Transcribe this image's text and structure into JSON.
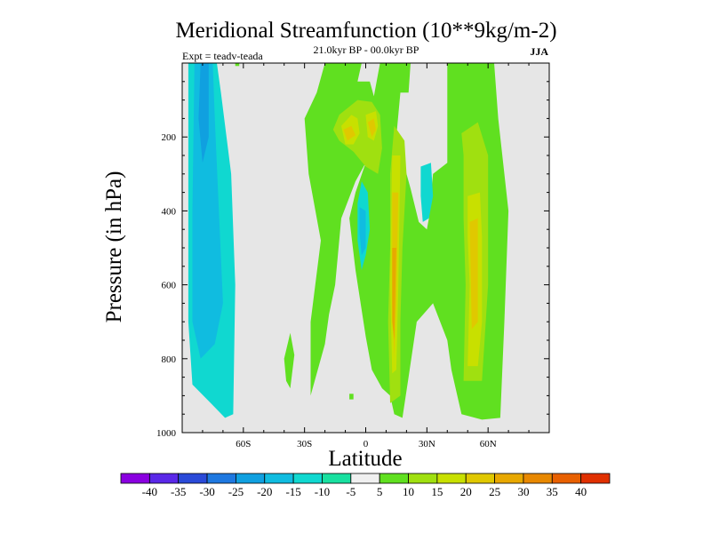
{
  "chart_data": {
    "type": "heatmap",
    "title": "Meridional Streamfunction (10**9kg/m-2)",
    "subtitle": "21.0kyr BP - 00.0kyr BP",
    "experiment_label": "Expt = teadv-teada",
    "season": "JJA",
    "xlabel": "Latitude",
    "ylabel": "Pressure (in hPa)",
    "xlim": [
      -90,
      90
    ],
    "ylim": [
      1000,
      0
    ],
    "x_ticks": [
      {
        "value": -60,
        "label": "60S"
      },
      {
        "value": -30,
        "label": "30S"
      },
      {
        "value": 0,
        "label": "0"
      },
      {
        "value": 30,
        "label": "30N"
      },
      {
        "value": 60,
        "label": "60N"
      }
    ],
    "y_ticks": [
      {
        "value": 200,
        "label": "200"
      },
      {
        "value": 400,
        "label": "400"
      },
      {
        "value": 600,
        "label": "600"
      },
      {
        "value": 800,
        "label": "800"
      },
      {
        "value": 1000,
        "label": "1000"
      }
    ],
    "colorbar": {
      "labels": [
        "-40",
        "-35",
        "-30",
        "-25",
        "-20",
        "-15",
        "-10",
        "-5",
        "5",
        "10",
        "15",
        "20",
        "25",
        "30",
        "35",
        "40"
      ],
      "colors": [
        "#8a00e0",
        "#5a28e8",
        "#2a4ad8",
        "#1e78e0",
        "#10a0e0",
        "#10bce0",
        "#10d8d0",
        "#18e0a0",
        "#f0f0f0",
        "#60e020",
        "#a0e010",
        "#c8e000",
        "#e0c800",
        "#e8a800",
        "#e88800",
        "#e86000",
        "#e03000"
      ]
    },
    "regions": [
      {
        "value": -10,
        "points": [
          [
            -87,
            0
          ],
          [
            -73,
            0
          ],
          [
            -71,
            80
          ],
          [
            -66,
            300
          ],
          [
            -64,
            600
          ],
          [
            -65,
            950
          ],
          [
            -69,
            960
          ],
          [
            -76,
            920
          ],
          [
            -85,
            870
          ],
          [
            -87,
            700
          ]
        ]
      },
      {
        "value": -15,
        "points": [
          [
            -84,
            0
          ],
          [
            -75,
            0
          ],
          [
            -74,
            150
          ],
          [
            -72,
            400
          ],
          [
            -70,
            650
          ],
          [
            -74,
            760
          ],
          [
            -81,
            800
          ],
          [
            -85,
            700
          ],
          [
            -85,
            400
          ]
        ]
      },
      {
        "value": -20,
        "points": [
          [
            -81,
            0
          ],
          [
            -77,
            0
          ],
          [
            -77,
            200
          ],
          [
            -80,
            270
          ],
          [
            -82,
            150
          ]
        ]
      },
      {
        "value": 5,
        "points": [
          [
            -20,
            0
          ],
          [
            -2,
            0
          ],
          [
            -4,
            50
          ],
          [
            2,
            50
          ],
          [
            4,
            90
          ],
          [
            7,
            0
          ],
          [
            22,
            0
          ],
          [
            21,
            80
          ],
          [
            17,
            80
          ],
          [
            15,
            200
          ],
          [
            22,
            340
          ],
          [
            26,
            430
          ],
          [
            30,
            450
          ],
          [
            31,
            420
          ],
          [
            33,
            300
          ],
          [
            40,
            270
          ],
          [
            40,
            0
          ],
          [
            63,
            0
          ],
          [
            65,
            150
          ],
          [
            70,
            400
          ],
          [
            68,
            700
          ],
          [
            66,
            960
          ],
          [
            57,
            965
          ],
          [
            47,
            950
          ],
          [
            42,
            830
          ],
          [
            40,
            750
          ],
          [
            33,
            650
          ],
          [
            25,
            700
          ],
          [
            21,
            850
          ],
          [
            18,
            960
          ],
          [
            14,
            950
          ],
          [
            12,
            900
          ],
          [
            8,
            880
          ],
          [
            3,
            830
          ],
          [
            0,
            740
          ],
          [
            -5,
            560
          ],
          [
            -8,
            420
          ],
          [
            -5,
            350
          ],
          [
            0,
            270
          ],
          [
            -5,
            320
          ],
          [
            -12,
            420
          ],
          [
            -15,
            600
          ],
          [
            -18,
            680
          ],
          [
            -20,
            760
          ],
          [
            -27,
            900
          ],
          [
            -27,
            700
          ],
          [
            -22,
            480
          ],
          [
            -28,
            300
          ],
          [
            -30,
            150
          ],
          [
            -24,
            80
          ]
        ]
      },
      {
        "value": 5,
        "points": [
          [
            -37,
            730
          ],
          [
            -35,
            790
          ],
          [
            -37,
            880
          ],
          [
            -39,
            860
          ],
          [
            -40,
            800
          ]
        ]
      },
      {
        "value": 5,
        "points": [
          [
            -8,
            895
          ],
          [
            -6,
            895
          ],
          [
            -6,
            910
          ],
          [
            -8,
            910
          ]
        ]
      },
      {
        "value": 5,
        "points": [
          [
            -64,
            0
          ],
          [
            -62,
            0
          ],
          [
            -62,
            8
          ],
          [
            -64,
            8
          ]
        ]
      },
      {
        "value": 10,
        "points": [
          [
            -13,
            140
          ],
          [
            -4,
            100
          ],
          [
            3,
            105
          ],
          [
            7,
            140
          ],
          [
            8,
            230
          ],
          [
            6,
            300
          ],
          [
            0,
            280
          ],
          [
            -6,
            240
          ],
          [
            -13,
            210
          ],
          [
            -16,
            180
          ]
        ]
      },
      {
        "value": 10,
        "points": [
          [
            14,
            170
          ],
          [
            19,
            210
          ],
          [
            20,
            300
          ],
          [
            18,
            500
          ],
          [
            17,
            700
          ],
          [
            17,
            900
          ],
          [
            12,
            920
          ],
          [
            11,
            700
          ],
          [
            12,
            500
          ],
          [
            12,
            300
          ]
        ]
      },
      {
        "value": 10,
        "points": [
          [
            47,
            190
          ],
          [
            55,
            160
          ],
          [
            60,
            250
          ],
          [
            60,
            420
          ],
          [
            60,
            600
          ],
          [
            57,
            860
          ],
          [
            48,
            860
          ],
          [
            49,
            600
          ],
          [
            48,
            420
          ],
          [
            48,
            250
          ]
        ]
      },
      {
        "value": 15,
        "points": [
          [
            -12,
            170
          ],
          [
            -7,
            140
          ],
          [
            -4,
            150
          ],
          [
            -3,
            190
          ],
          [
            -6,
            220
          ],
          [
            -10,
            220
          ]
        ]
      },
      {
        "value": 15,
        "points": [
          [
            0,
            140
          ],
          [
            5,
            130
          ],
          [
            6,
            170
          ],
          [
            4,
            210
          ],
          [
            1,
            200
          ]
        ]
      },
      {
        "value": 15,
        "points": [
          [
            13,
            250
          ],
          [
            17,
            250
          ],
          [
            16,
            600
          ],
          [
            15,
            830
          ],
          [
            13,
            840
          ],
          [
            12,
            600
          ]
        ]
      },
      {
        "value": 15,
        "points": [
          [
            50,
            360
          ],
          [
            56,
            350
          ],
          [
            57,
            470
          ],
          [
            57,
            700
          ],
          [
            55,
            820
          ],
          [
            50,
            820
          ],
          [
            51,
            600
          ],
          [
            50,
            470
          ]
        ]
      },
      {
        "value": 20,
        "points": [
          [
            -11,
            180
          ],
          [
            -7,
            170
          ],
          [
            -5,
            195
          ],
          [
            -9,
            210
          ]
        ]
      },
      {
        "value": 20,
        "points": [
          [
            1,
            160
          ],
          [
            4,
            150
          ],
          [
            5,
            180
          ],
          [
            3,
            200
          ]
        ]
      },
      {
        "value": 20,
        "points": [
          [
            13,
            350
          ],
          [
            16,
            350
          ],
          [
            15,
            650
          ],
          [
            14,
            800
          ],
          [
            13,
            650
          ]
        ]
      },
      {
        "value": 20,
        "points": [
          [
            51,
            430
          ],
          [
            55,
            420
          ],
          [
            55,
            700
          ],
          [
            52,
            720
          ]
        ]
      },
      {
        "value": 25,
        "points": [
          [
            13,
            500
          ],
          [
            15,
            500
          ],
          [
            14,
            750
          ],
          [
            13,
            700
          ]
        ]
      },
      {
        "value": -10,
        "points": [
          [
            -2,
            320
          ],
          [
            1,
            350
          ],
          [
            2,
            450
          ],
          [
            0,
            520
          ],
          [
            -2,
            560
          ],
          [
            -4,
            480
          ],
          [
            -4,
            380
          ]
        ]
      },
      {
        "value": -15,
        "points": [
          [
            -3,
            390
          ],
          [
            0,
            400
          ],
          [
            0,
            500
          ],
          [
            -2,
            520
          ],
          [
            -3,
            460
          ]
        ]
      },
      {
        "value": -10,
        "points": [
          [
            27,
            280
          ],
          [
            32,
            270
          ],
          [
            33,
            360
          ],
          [
            31,
            420
          ],
          [
            28,
            430
          ],
          [
            27,
            360
          ]
        ]
      }
    ]
  }
}
